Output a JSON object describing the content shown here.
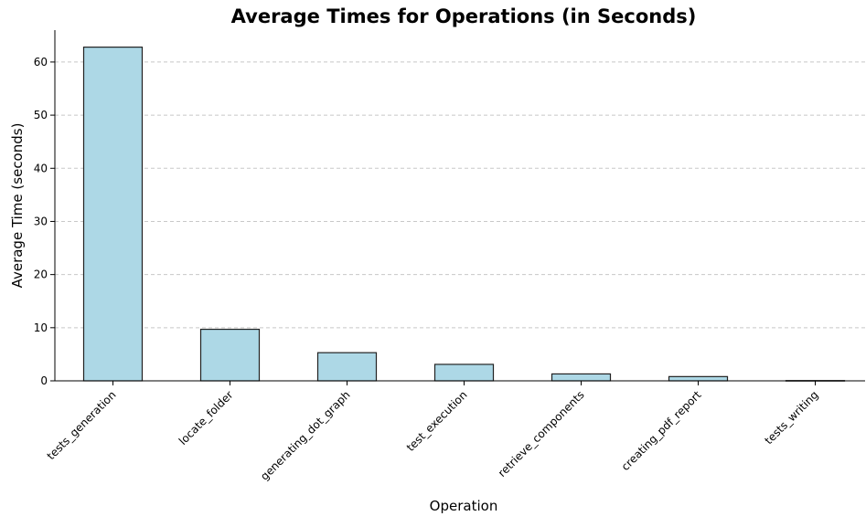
{
  "chart_data": {
    "type": "bar",
    "title": "Average Times for Operations (in Seconds)",
    "xlabel": "Operation",
    "ylabel": "Average Time (seconds)",
    "categories": [
      "tests_generation",
      "locate_folder",
      "generating_dot_graph",
      "test_execution",
      "retrieve_components",
      "creating_pdf_report",
      "tests_writing"
    ],
    "values": [
      62.8,
      9.7,
      5.3,
      3.1,
      1.3,
      0.8,
      0.05
    ],
    "ylim": [
      0,
      66
    ],
    "yticks": [
      0,
      10,
      20,
      30,
      40,
      50,
      60
    ],
    "grid": "y-dashed",
    "bar_color": "#add8e6",
    "edge_color": "#222222"
  }
}
